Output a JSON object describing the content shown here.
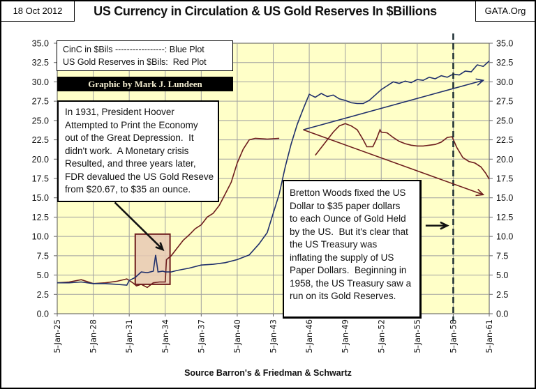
{
  "header": {
    "date": "18 Oct 2012",
    "title": "US Currency in Circulation & US Gold Reserves In $Billions",
    "site": "GATA.Org"
  },
  "legend": {
    "lines": [
      "CinC in $Bils -----------------: Blue Plot",
      "US Gold Reserves in $Bils:  Red Plot"
    ],
    "byline": "Graphic by Mark J. Lundeen"
  },
  "annotations": {
    "hoover": [
      "In 1931, President Hoover",
      "Attempted to Print the Economy",
      "out of the Great Depression.  It",
      "didn't work.  A Monetary crisis",
      "Resulted, and three years later,",
      "FDR devalued the US Gold Reseve",
      "from $20.67, to $35 an ounce."
    ],
    "bretton": [
      "Bretton Woods fixed the US",
      "Dollar to $35 paper dollars",
      "to each Ounce of Gold Held",
      "by the US.  But it's clear that",
      "the US Treasury was",
      "inflating the supply of US",
      "Paper Dollars.  Beginning in",
      "1958, the US Treasury saw a",
      "run on its Gold Reserves."
    ]
  },
  "footer": {
    "source": "Source Barron's & Friedman & Schwartz"
  },
  "colors": {
    "blue": "#1f2f6b",
    "red": "#6e1d1d",
    "plot_bg": "#ffffc8",
    "grid": "#a0a0a0",
    "highlight": "#e8c9b4"
  },
  "chart_data": {
    "type": "line",
    "title": "US Currency in Circulation & US Gold Reserves In $Billions",
    "xlabel": "Source Barron's & Friedman & Schwartz",
    "ylabel": "",
    "x_tick_labels": [
      "5-Jan-25",
      "5-Jan-28",
      "5-Jan-31",
      "5-Jan-34",
      "5-Jan-37",
      "5-Jan-40",
      "5-Jan-43",
      "5-Jan-46",
      "5-Jan-49",
      "5-Jan-52",
      "5-Jan-55",
      "5-Jan-58",
      "5-Jan-61"
    ],
    "x_range": [
      1925.0,
      1961.0
    ],
    "y_tick_labels": [
      "0.0",
      "2.5",
      "5.0",
      "7.5",
      "10.0",
      "12.5",
      "15.0",
      "17.5",
      "20.0",
      "22.5",
      "25.0",
      "27.5",
      "30.0",
      "32.5",
      "35.0"
    ],
    "ylim": [
      0,
      35
    ],
    "y_ticks": [
      0,
      2.5,
      5,
      7.5,
      10,
      12.5,
      15,
      17.5,
      20,
      22.5,
      25,
      27.5,
      30,
      32.5,
      35
    ],
    "grid": true,
    "secondary_y_axis": true,
    "legend": "top-left",
    "series": [
      {
        "name": "CinC in $Bils (Blue Plot)",
        "color": "#1f2f6b",
        "points": [
          [
            1925.0,
            4.0
          ],
          [
            1926.0,
            4.0
          ],
          [
            1927.0,
            4.1
          ],
          [
            1928.0,
            3.9
          ],
          [
            1929.0,
            3.9
          ],
          [
            1930.0,
            3.8
          ],
          [
            1930.8,
            3.7
          ],
          [
            1931.0,
            4.3
          ],
          [
            1931.5,
            4.7
          ],
          [
            1932.0,
            5.4
          ],
          [
            1932.5,
            5.3
          ],
          [
            1933.0,
            5.5
          ],
          [
            1933.2,
            7.6
          ],
          [
            1933.4,
            5.4
          ],
          [
            1933.8,
            5.5
          ],
          [
            1934.0,
            5.4
          ],
          [
            1934.5,
            5.4
          ],
          [
            1935.0,
            5.6
          ],
          [
            1936.0,
            5.9
          ],
          [
            1937.0,
            6.3
          ],
          [
            1938.0,
            6.4
          ],
          [
            1939.0,
            6.6
          ],
          [
            1940.0,
            7.0
          ],
          [
            1941.0,
            7.6
          ],
          [
            1941.8,
            9.0
          ],
          [
            1942.5,
            10.5
          ],
          [
            1943.0,
            13.0
          ],
          [
            1943.5,
            15.5
          ],
          [
            1944.0,
            19.0
          ],
          [
            1944.5,
            22.0
          ],
          [
            1945.0,
            24.5
          ],
          [
            1945.5,
            26.5
          ],
          [
            1946.0,
            28.4
          ],
          [
            1946.5,
            28.0
          ],
          [
            1947.0,
            28.5
          ],
          [
            1947.5,
            28.1
          ],
          [
            1948.0,
            28.3
          ],
          [
            1948.5,
            27.8
          ],
          [
            1949.0,
            27.6
          ],
          [
            1949.5,
            27.3
          ],
          [
            1950.0,
            27.2
          ],
          [
            1950.5,
            27.2
          ],
          [
            1951.0,
            27.6
          ],
          [
            1951.5,
            28.3
          ],
          [
            1952.0,
            29.0
          ],
          [
            1952.5,
            29.5
          ],
          [
            1953.0,
            30.0
          ],
          [
            1953.5,
            29.8
          ],
          [
            1954.0,
            30.1
          ],
          [
            1954.5,
            29.9
          ],
          [
            1955.0,
            30.3
          ],
          [
            1955.5,
            30.2
          ],
          [
            1956.0,
            30.6
          ],
          [
            1956.5,
            30.4
          ],
          [
            1957.0,
            30.8
          ],
          [
            1957.5,
            30.6
          ],
          [
            1958.0,
            31.0
          ],
          [
            1958.5,
            30.9
          ],
          [
            1959.0,
            31.4
          ],
          [
            1959.5,
            31.3
          ],
          [
            1960.0,
            32.2
          ],
          [
            1960.5,
            32.0
          ],
          [
            1961.0,
            32.7
          ]
        ]
      },
      {
        "name": "US Gold Reserves in $Bils (Red Plot)",
        "color": "#6e1d1d",
        "points": [
          [
            1925.0,
            4.0
          ],
          [
            1926.0,
            4.1
          ],
          [
            1927.0,
            4.4
          ],
          [
            1928.0,
            3.9
          ],
          [
            1929.0,
            4.0
          ],
          [
            1930.0,
            4.2
          ],
          [
            1930.8,
            4.5
          ],
          [
            1931.3,
            4.0
          ],
          [
            1931.6,
            3.6
          ],
          [
            1932.0,
            3.8
          ],
          [
            1932.5,
            3.4
          ],
          [
            1933.0,
            4.0
          ],
          [
            1933.5,
            4.1
          ],
          [
            1934.0,
            4.1
          ],
          [
            1934.1,
            7.0
          ],
          [
            1934.5,
            7.5
          ],
          [
            1935.0,
            8.5
          ],
          [
            1935.5,
            9.5
          ],
          [
            1936.0,
            10.2
          ],
          [
            1936.5,
            11.0
          ],
          [
            1937.0,
            11.5
          ],
          [
            1937.5,
            12.5
          ],
          [
            1938.0,
            13.0
          ],
          [
            1938.5,
            14.0
          ],
          [
            1939.0,
            15.5
          ],
          [
            1939.5,
            17.0
          ],
          [
            1940.0,
            19.5
          ],
          [
            1940.5,
            21.3
          ],
          [
            1941.0,
            22.5
          ],
          [
            1941.5,
            22.7
          ],
          [
            1942.5,
            22.6
          ],
          [
            1943.5,
            22.7
          ],
          [
            null,
            null
          ],
          [
            1946.5,
            20.5
          ],
          [
            1947.0,
            21.5
          ],
          [
            1947.5,
            22.5
          ],
          [
            1948.0,
            23.5
          ],
          [
            1948.5,
            24.3
          ],
          [
            1949.0,
            24.6
          ],
          [
            1949.5,
            24.3
          ],
          [
            1950.0,
            23.8
          ],
          [
            1950.5,
            22.5
          ],
          [
            1950.8,
            21.6
          ],
          [
            1951.3,
            21.6
          ],
          [
            1951.6,
            22.6
          ],
          [
            1951.9,
            23.8
          ],
          [
            1952.0,
            23.5
          ],
          [
            1952.5,
            23.4
          ],
          [
            1953.0,
            22.8
          ],
          [
            1953.5,
            22.3
          ],
          [
            1954.0,
            22.0
          ],
          [
            1954.5,
            21.8
          ],
          [
            1955.0,
            21.7
          ],
          [
            1955.5,
            21.7
          ],
          [
            1956.0,
            21.8
          ],
          [
            1956.5,
            21.9
          ],
          [
            1957.0,
            22.2
          ],
          [
            1957.5,
            22.8
          ],
          [
            1957.9,
            22.9
          ],
          [
            1958.3,
            21.5
          ],
          [
            1958.8,
            20.2
          ],
          [
            1959.3,
            19.7
          ],
          [
            1959.8,
            19.5
          ],
          [
            1960.3,
            19.0
          ],
          [
            1960.7,
            18.2
          ],
          [
            1961.0,
            17.4
          ]
        ]
      }
    ],
    "overlays": {
      "trend_arrow_blue": {
        "from": [
          1945.5,
          23.8
        ],
        "to": [
          1960.5,
          30.2
        ]
      },
      "trend_arrow_red": {
        "from": [
          1945.5,
          23.8
        ],
        "to": [
          1960.5,
          15.4
        ]
      },
      "highlight_box": {
        "x": [
          1931.5,
          1934.4
        ],
        "y": [
          3.8,
          10.3
        ]
      },
      "dashed_vertical_line_x": 1958.0,
      "hoover_arrow": {
        "from": [
          1929.8,
          14.4
        ],
        "to": [
          1933.8,
          8.3
        ]
      },
      "bretton_arrow": {
        "from": [
          1955.7,
          11.4
        ],
        "to": [
          1957.5,
          11.4
        ]
      }
    }
  }
}
